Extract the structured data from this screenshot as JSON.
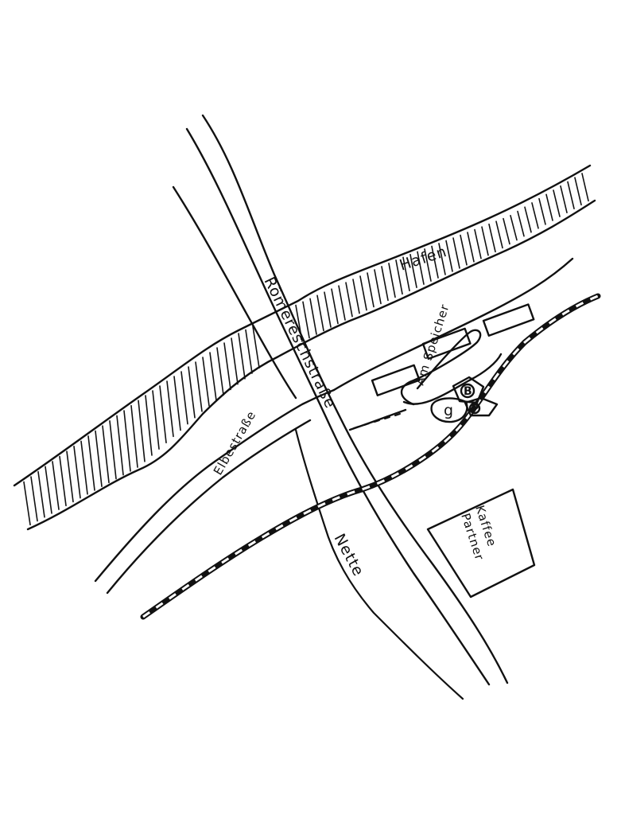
{
  "map": {
    "streets": {
      "roemereschstrasse": "Römereschstraße",
      "elbestrasse": "Elbestraße",
      "am_speicher": "Am Speicher"
    },
    "water": {
      "hafen": "Hafen",
      "nette": "Nette"
    },
    "buildings": {
      "kaffee_partner": [
        "Kaffee",
        "Partner"
      ]
    },
    "symbols": {
      "p_marker": "P",
      "g_marker": "g",
      "b_marker": "B"
    },
    "colors": {
      "ink": "#111111",
      "paper": "#ffffff"
    }
  }
}
